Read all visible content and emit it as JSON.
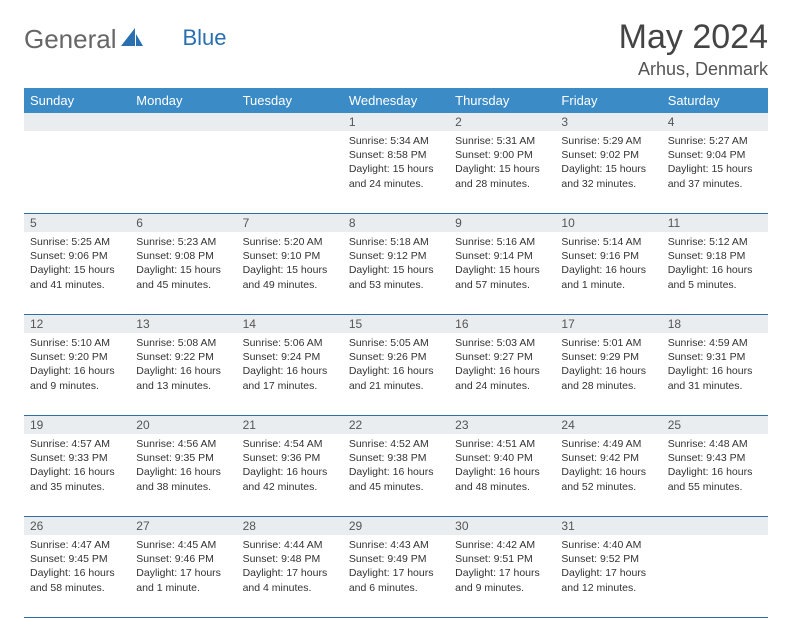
{
  "brand": {
    "name_part1": "General",
    "name_part2": "Blue"
  },
  "title": "May 2024",
  "location": "Arhus, Denmark",
  "colors": {
    "header_bg": "#3b8bc6",
    "header_text": "#ffffff",
    "daynum_bg": "#e9edf0",
    "divider": "#2f6fa3",
    "page_bg": "#ffffff",
    "text": "#333333",
    "logo_gray": "#666666",
    "logo_blue": "#2a6fb0"
  },
  "weekdays": [
    "Sunday",
    "Monday",
    "Tuesday",
    "Wednesday",
    "Thursday",
    "Friday",
    "Saturday"
  ],
  "weeks": [
    {
      "nums": [
        "",
        "",
        "",
        "1",
        "2",
        "3",
        "4"
      ],
      "cells": [
        null,
        null,
        null,
        {
          "sunrise": "Sunrise: 5:34 AM",
          "sunset": "Sunset: 8:58 PM",
          "day1": "Daylight: 15 hours",
          "day2": "and 24 minutes."
        },
        {
          "sunrise": "Sunrise: 5:31 AM",
          "sunset": "Sunset: 9:00 PM",
          "day1": "Daylight: 15 hours",
          "day2": "and 28 minutes."
        },
        {
          "sunrise": "Sunrise: 5:29 AM",
          "sunset": "Sunset: 9:02 PM",
          "day1": "Daylight: 15 hours",
          "day2": "and 32 minutes."
        },
        {
          "sunrise": "Sunrise: 5:27 AM",
          "sunset": "Sunset: 9:04 PM",
          "day1": "Daylight: 15 hours",
          "day2": "and 37 minutes."
        }
      ]
    },
    {
      "nums": [
        "5",
        "6",
        "7",
        "8",
        "9",
        "10",
        "11"
      ],
      "cells": [
        {
          "sunrise": "Sunrise: 5:25 AM",
          "sunset": "Sunset: 9:06 PM",
          "day1": "Daylight: 15 hours",
          "day2": "and 41 minutes."
        },
        {
          "sunrise": "Sunrise: 5:23 AM",
          "sunset": "Sunset: 9:08 PM",
          "day1": "Daylight: 15 hours",
          "day2": "and 45 minutes."
        },
        {
          "sunrise": "Sunrise: 5:20 AM",
          "sunset": "Sunset: 9:10 PM",
          "day1": "Daylight: 15 hours",
          "day2": "and 49 minutes."
        },
        {
          "sunrise": "Sunrise: 5:18 AM",
          "sunset": "Sunset: 9:12 PM",
          "day1": "Daylight: 15 hours",
          "day2": "and 53 minutes."
        },
        {
          "sunrise": "Sunrise: 5:16 AM",
          "sunset": "Sunset: 9:14 PM",
          "day1": "Daylight: 15 hours",
          "day2": "and 57 minutes."
        },
        {
          "sunrise": "Sunrise: 5:14 AM",
          "sunset": "Sunset: 9:16 PM",
          "day1": "Daylight: 16 hours",
          "day2": "and 1 minute."
        },
        {
          "sunrise": "Sunrise: 5:12 AM",
          "sunset": "Sunset: 9:18 PM",
          "day1": "Daylight: 16 hours",
          "day2": "and 5 minutes."
        }
      ]
    },
    {
      "nums": [
        "12",
        "13",
        "14",
        "15",
        "16",
        "17",
        "18"
      ],
      "cells": [
        {
          "sunrise": "Sunrise: 5:10 AM",
          "sunset": "Sunset: 9:20 PM",
          "day1": "Daylight: 16 hours",
          "day2": "and 9 minutes."
        },
        {
          "sunrise": "Sunrise: 5:08 AM",
          "sunset": "Sunset: 9:22 PM",
          "day1": "Daylight: 16 hours",
          "day2": "and 13 minutes."
        },
        {
          "sunrise": "Sunrise: 5:06 AM",
          "sunset": "Sunset: 9:24 PM",
          "day1": "Daylight: 16 hours",
          "day2": "and 17 minutes."
        },
        {
          "sunrise": "Sunrise: 5:05 AM",
          "sunset": "Sunset: 9:26 PM",
          "day1": "Daylight: 16 hours",
          "day2": "and 21 minutes."
        },
        {
          "sunrise": "Sunrise: 5:03 AM",
          "sunset": "Sunset: 9:27 PM",
          "day1": "Daylight: 16 hours",
          "day2": "and 24 minutes."
        },
        {
          "sunrise": "Sunrise: 5:01 AM",
          "sunset": "Sunset: 9:29 PM",
          "day1": "Daylight: 16 hours",
          "day2": "and 28 minutes."
        },
        {
          "sunrise": "Sunrise: 4:59 AM",
          "sunset": "Sunset: 9:31 PM",
          "day1": "Daylight: 16 hours",
          "day2": "and 31 minutes."
        }
      ]
    },
    {
      "nums": [
        "19",
        "20",
        "21",
        "22",
        "23",
        "24",
        "25"
      ],
      "cells": [
        {
          "sunrise": "Sunrise: 4:57 AM",
          "sunset": "Sunset: 9:33 PM",
          "day1": "Daylight: 16 hours",
          "day2": "and 35 minutes."
        },
        {
          "sunrise": "Sunrise: 4:56 AM",
          "sunset": "Sunset: 9:35 PM",
          "day1": "Daylight: 16 hours",
          "day2": "and 38 minutes."
        },
        {
          "sunrise": "Sunrise: 4:54 AM",
          "sunset": "Sunset: 9:36 PM",
          "day1": "Daylight: 16 hours",
          "day2": "and 42 minutes."
        },
        {
          "sunrise": "Sunrise: 4:52 AM",
          "sunset": "Sunset: 9:38 PM",
          "day1": "Daylight: 16 hours",
          "day2": "and 45 minutes."
        },
        {
          "sunrise": "Sunrise: 4:51 AM",
          "sunset": "Sunset: 9:40 PM",
          "day1": "Daylight: 16 hours",
          "day2": "and 48 minutes."
        },
        {
          "sunrise": "Sunrise: 4:49 AM",
          "sunset": "Sunset: 9:42 PM",
          "day1": "Daylight: 16 hours",
          "day2": "and 52 minutes."
        },
        {
          "sunrise": "Sunrise: 4:48 AM",
          "sunset": "Sunset: 9:43 PM",
          "day1": "Daylight: 16 hours",
          "day2": "and 55 minutes."
        }
      ]
    },
    {
      "nums": [
        "26",
        "27",
        "28",
        "29",
        "30",
        "31",
        ""
      ],
      "cells": [
        {
          "sunrise": "Sunrise: 4:47 AM",
          "sunset": "Sunset: 9:45 PM",
          "day1": "Daylight: 16 hours",
          "day2": "and 58 minutes."
        },
        {
          "sunrise": "Sunrise: 4:45 AM",
          "sunset": "Sunset: 9:46 PM",
          "day1": "Daylight: 17 hours",
          "day2": "and 1 minute."
        },
        {
          "sunrise": "Sunrise: 4:44 AM",
          "sunset": "Sunset: 9:48 PM",
          "day1": "Daylight: 17 hours",
          "day2": "and 4 minutes."
        },
        {
          "sunrise": "Sunrise: 4:43 AM",
          "sunset": "Sunset: 9:49 PM",
          "day1": "Daylight: 17 hours",
          "day2": "and 6 minutes."
        },
        {
          "sunrise": "Sunrise: 4:42 AM",
          "sunset": "Sunset: 9:51 PM",
          "day1": "Daylight: 17 hours",
          "day2": "and 9 minutes."
        },
        {
          "sunrise": "Sunrise: 4:40 AM",
          "sunset": "Sunset: 9:52 PM",
          "day1": "Daylight: 17 hours",
          "day2": "and 12 minutes."
        },
        null
      ]
    }
  ]
}
